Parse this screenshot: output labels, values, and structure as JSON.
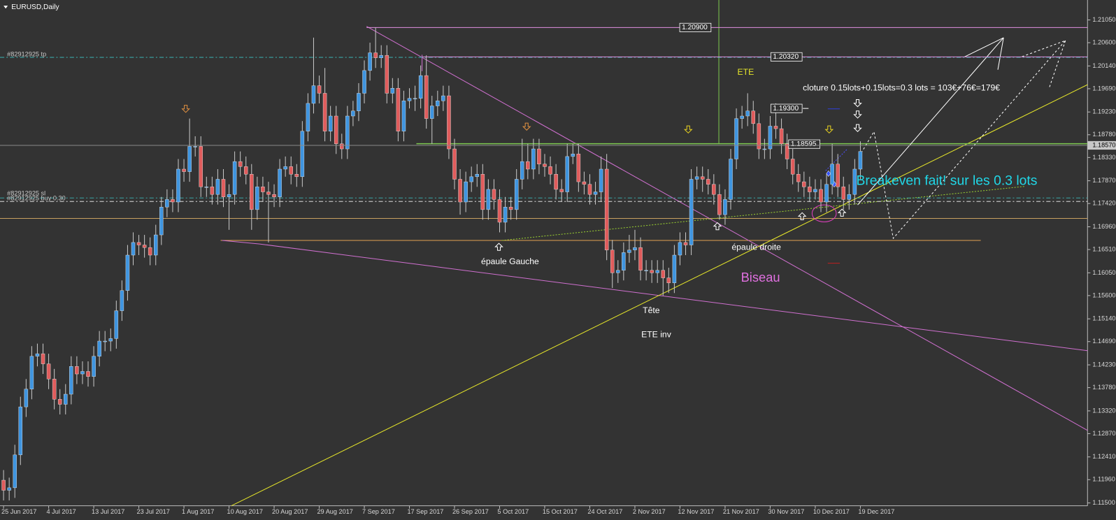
{
  "window_title": "EURUSD,Daily",
  "chart_data": {
    "type": "candlestick",
    "categories": [
      "25 Jun 2017",
      null,
      null,
      null,
      null,
      null,
      null,
      null,
      "4 Jul 2017",
      null,
      null,
      null,
      null,
      null,
      null,
      null,
      "13 Jul 2017",
      null,
      null,
      null,
      null,
      null,
      null,
      null,
      "23 Jul 2017",
      null,
      null,
      null,
      null,
      null,
      null,
      null,
      "1 Aug 2017",
      null,
      null,
      null,
      null,
      null,
      null,
      null,
      "10 Aug 2017",
      null,
      null,
      null,
      null,
      null,
      null,
      null,
      "20 Aug 2017",
      null,
      null,
      null,
      null,
      null,
      null,
      null,
      "29 Aug 2017",
      null,
      null,
      null,
      null,
      null,
      null,
      null,
      "7 Sep 2017",
      null,
      null,
      null,
      null,
      null,
      null,
      null,
      "17 Sep 2017",
      null,
      null,
      null,
      null,
      null,
      null,
      null,
      "26 Sep 2017",
      null,
      null,
      null,
      null,
      null,
      null,
      null,
      "5 Oct 2017",
      null,
      null,
      null,
      null,
      null,
      null,
      null,
      "15 Oct 2017",
      null,
      null,
      null,
      null,
      null,
      null,
      null,
      "24 Oct 2017",
      null,
      null,
      null,
      null,
      null,
      null,
      null,
      "2 Nov 2017",
      null,
      null,
      null,
      null,
      null,
      null,
      null,
      "12 Nov 2017",
      null,
      null,
      null,
      null,
      null,
      null,
      null,
      "21 Nov 2017",
      null,
      null,
      null,
      null,
      null,
      null,
      null,
      "30 Nov 2017",
      null,
      null,
      null,
      null,
      null,
      null,
      null,
      "10 Dec 2017",
      null,
      null,
      null,
      null,
      null,
      null,
      null,
      "19 Dec 2017"
    ],
    "ohlc": [
      [
        1.1195,
        1.1215,
        1.1155,
        1.1175
      ],
      [
        1.1175,
        1.12,
        1.1155,
        1.118
      ],
      [
        1.118,
        1.1265,
        1.116,
        1.1245
      ],
      [
        1.1245,
        1.136,
        1.1225,
        1.134
      ],
      [
        1.134,
        1.1395,
        1.132,
        1.1375
      ],
      [
        1.1375,
        1.146,
        1.1355,
        1.144
      ],
      [
        1.144,
        1.1465,
        1.142,
        1.1445
      ],
      [
        1.1445,
        1.1465,
        1.1405,
        1.1425
      ],
      [
        1.1425,
        1.1445,
        1.1375,
        1.1395
      ],
      [
        1.1395,
        1.1415,
        1.1335,
        1.1355
      ],
      [
        1.1355,
        1.1375,
        1.1325,
        1.1345
      ],
      [
        1.1345,
        1.1385,
        1.1325,
        1.1365
      ],
      [
        1.1365,
        1.144,
        1.1345,
        1.142
      ],
      [
        1.142,
        1.144,
        1.1385,
        1.1405
      ],
      [
        1.1405,
        1.143,
        1.1385,
        1.141
      ],
      [
        1.141,
        1.143,
        1.138,
        1.14
      ],
      [
        1.14,
        1.146,
        1.138,
        1.144
      ],
      [
        1.144,
        1.149,
        1.142,
        1.147
      ],
      [
        1.147,
        1.149,
        1.145,
        1.147
      ],
      [
        1.147,
        1.1495,
        1.145,
        1.1475
      ],
      [
        1.1475,
        1.155,
        1.1455,
        1.153
      ],
      [
        1.153,
        1.159,
        1.151,
        1.157
      ],
      [
        1.157,
        1.166,
        1.155,
        1.164
      ],
      [
        1.164,
        1.1685,
        1.162,
        1.1665
      ],
      [
        1.1665,
        1.168,
        1.164,
        1.166
      ],
      [
        1.166,
        1.168,
        1.1635,
        1.1655
      ],
      [
        1.1655,
        1.1675,
        1.162,
        1.164
      ],
      [
        1.164,
        1.17,
        1.162,
        1.168
      ],
      [
        1.168,
        1.1755,
        1.166,
        1.1735
      ],
      [
        1.1735,
        1.177,
        1.1715,
        1.175
      ],
      [
        1.175,
        1.177,
        1.1725,
        1.1745
      ],
      [
        1.1745,
        1.183,
        1.1725,
        1.181
      ],
      [
        1.181,
        1.183,
        1.1785,
        1.1805
      ],
      [
        1.1805,
        1.191,
        1.1785,
        1.1855
      ],
      [
        1.1855,
        1.1875,
        1.1835,
        1.1855
      ],
      [
        1.1855,
        1.1875,
        1.1755,
        1.1775
      ],
      [
        1.1775,
        1.1795,
        1.1755,
        1.1775
      ],
      [
        1.1775,
        1.1795,
        1.174,
        1.176
      ],
      [
        1.176,
        1.181,
        1.174,
        1.179
      ],
      [
        1.179,
        1.181,
        1.1735,
        1.1755
      ],
      [
        1.1755,
        1.178,
        1.169,
        1.176
      ],
      [
        1.176,
        1.1845,
        1.174,
        1.1825
      ],
      [
        1.1825,
        1.1845,
        1.1795,
        1.1815
      ],
      [
        1.1815,
        1.1835,
        1.178,
        1.18
      ],
      [
        1.18,
        1.182,
        1.169,
        1.173
      ],
      [
        1.173,
        1.1795,
        1.171,
        1.1775
      ],
      [
        1.1775,
        1.1795,
        1.1745,
        1.1765
      ],
      [
        1.1765,
        1.1785,
        1.1665,
        1.176
      ],
      [
        1.176,
        1.178,
        1.1735,
        1.1755
      ],
      [
        1.1755,
        1.183,
        1.1735,
        1.181
      ],
      [
        1.181,
        1.1835,
        1.1795,
        1.1815
      ],
      [
        1.1815,
        1.1835,
        1.178,
        1.18
      ],
      [
        1.18,
        1.182,
        1.1775,
        1.1795
      ],
      [
        1.1795,
        1.1905,
        1.1775,
        1.1885
      ],
      [
        1.1885,
        1.196,
        1.1865,
        1.194
      ],
      [
        1.194,
        1.207,
        1.192,
        1.1975
      ],
      [
        1.1975,
        1.1995,
        1.194,
        1.196
      ],
      [
        1.196,
        1.201,
        1.1865,
        1.1885
      ],
      [
        1.1885,
        1.1935,
        1.1865,
        1.1915
      ],
      [
        1.1915,
        1.1935,
        1.184,
        1.186
      ],
      [
        1.186,
        1.188,
        1.183,
        1.185
      ],
      [
        1.185,
        1.1935,
        1.183,
        1.1915
      ],
      [
        1.1915,
        1.1945,
        1.1895,
        1.1925
      ],
      [
        1.1925,
        1.198,
        1.1905,
        1.196
      ],
      [
        1.196,
        1.2025,
        1.194,
        1.2005
      ],
      [
        1.2005,
        1.206,
        1.1985,
        1.204
      ],
      [
        1.204,
        1.209,
        1.201,
        1.203
      ],
      [
        1.203,
        1.2055,
        1.201,
        1.2035
      ],
      [
        1.2035,
        1.2055,
        1.194,
        1.196
      ],
      [
        1.196,
        1.199,
        1.194,
        1.197
      ],
      [
        1.197,
        1.199,
        1.1865,
        1.1885
      ],
      [
        1.1885,
        1.1965,
        1.1865,
        1.1945
      ],
      [
        1.1945,
        1.197,
        1.193,
        1.195
      ],
      [
        1.195,
        1.1975,
        1.1925,
        1.195
      ],
      [
        1.195,
        1.2015,
        1.193,
        1.1995
      ],
      [
        1.1995,
        1.2035,
        1.189,
        1.191
      ],
      [
        1.191,
        1.1955,
        1.186,
        1.1935
      ],
      [
        1.1935,
        1.1965,
        1.1915,
        1.1945
      ],
      [
        1.1945,
        1.1975,
        1.1925,
        1.1955
      ],
      [
        1.1955,
        1.1975,
        1.183,
        1.185
      ],
      [
        1.185,
        1.187,
        1.177,
        1.179
      ],
      [
        1.179,
        1.181,
        1.172,
        1.1745
      ],
      [
        1.1745,
        1.1805,
        1.1725,
        1.1785
      ],
      [
        1.1785,
        1.1815,
        1.1765,
        1.1795
      ],
      [
        1.1795,
        1.182,
        1.1775,
        1.18
      ],
      [
        1.18,
        1.182,
        1.171,
        1.173
      ],
      [
        1.173,
        1.179,
        1.171,
        1.177
      ],
      [
        1.177,
        1.179,
        1.173,
        1.175
      ],
      [
        1.175,
        1.177,
        1.1685,
        1.1705
      ],
      [
        1.1705,
        1.1755,
        1.1685,
        1.1735
      ],
      [
        1.1735,
        1.1755,
        1.171,
        1.173
      ],
      [
        1.173,
        1.181,
        1.171,
        1.179
      ],
      [
        1.179,
        1.187,
        1.177,
        1.1825
      ],
      [
        1.1825,
        1.186,
        1.179,
        1.181
      ],
      [
        1.181,
        1.187,
        1.179,
        1.185
      ],
      [
        1.185,
        1.187,
        1.18,
        1.182
      ],
      [
        1.182,
        1.184,
        1.1795,
        1.1815
      ],
      [
        1.1815,
        1.1835,
        1.178,
        1.18
      ],
      [
        1.18,
        1.182,
        1.175,
        1.177
      ],
      [
        1.177,
        1.179,
        1.1745,
        1.1765
      ],
      [
        1.1765,
        1.186,
        1.1745,
        1.1835
      ],
      [
        1.1835,
        1.186,
        1.182,
        1.184
      ],
      [
        1.184,
        1.186,
        1.1765,
        1.1785
      ],
      [
        1.1785,
        1.1805,
        1.176,
        1.178
      ],
      [
        1.178,
        1.18,
        1.174,
        1.176
      ],
      [
        1.176,
        1.1785,
        1.174,
        1.1765
      ],
      [
        1.1765,
        1.1835,
        1.1745,
        1.181
      ],
      [
        1.181,
        1.184,
        1.163,
        1.165
      ],
      [
        1.165,
        1.167,
        1.1575,
        1.1605
      ],
      [
        1.1605,
        1.163,
        1.1585,
        1.161
      ],
      [
        1.161,
        1.1665,
        1.159,
        1.1645
      ],
      [
        1.1645,
        1.168,
        1.1625,
        1.165
      ],
      [
        1.165,
        1.169,
        1.163,
        1.1655
      ],
      [
        1.1655,
        1.1675,
        1.159,
        1.161
      ],
      [
        1.161,
        1.163,
        1.159,
        1.161
      ],
      [
        1.161,
        1.163,
        1.1585,
        1.1605
      ],
      [
        1.1605,
        1.163,
        1.1585,
        1.161
      ],
      [
        1.161,
        1.163,
        1.156,
        1.1595
      ],
      [
        1.1595,
        1.1615,
        1.1565,
        1.1585
      ],
      [
        1.1585,
        1.166,
        1.1565,
        1.164
      ],
      [
        1.164,
        1.1685,
        1.162,
        1.1665
      ],
      [
        1.1665,
        1.1685,
        1.164,
        1.166
      ],
      [
        1.166,
        1.181,
        1.164,
        1.179
      ],
      [
        1.179,
        1.1815,
        1.177,
        1.1795
      ],
      [
        1.1795,
        1.1815,
        1.1765,
        1.179
      ],
      [
        1.179,
        1.181,
        1.176,
        1.178
      ],
      [
        1.178,
        1.18,
        1.174,
        1.176
      ],
      [
        1.176,
        1.178,
        1.171,
        1.172
      ],
      [
        1.172,
        1.177,
        1.17,
        1.175
      ],
      [
        1.175,
        1.185,
        1.173,
        1.183
      ],
      [
        1.183,
        1.193,
        1.181,
        1.191
      ],
      [
        1.191,
        1.1935,
        1.189,
        1.1915
      ],
      [
        1.1915,
        1.196,
        1.1895,
        1.1925
      ],
      [
        1.1925,
        1.1945,
        1.188,
        1.19
      ],
      [
        1.19,
        1.192,
        1.183,
        1.185
      ],
      [
        1.185,
        1.187,
        1.183,
        1.185
      ],
      [
        1.185,
        1.1915,
        1.183,
        1.1895
      ],
      [
        1.1895,
        1.194,
        1.187,
        1.189
      ],
      [
        1.189,
        1.191,
        1.184,
        1.186
      ],
      [
        1.186,
        1.188,
        1.181,
        1.183
      ],
      [
        1.183,
        1.185,
        1.178,
        1.18
      ],
      [
        1.18,
        1.182,
        1.1765,
        1.1785
      ],
      [
        1.1785,
        1.1805,
        1.1755,
        1.1775
      ],
      [
        1.1775,
        1.1795,
        1.1745,
        1.1765
      ],
      [
        1.1765,
        1.179,
        1.175,
        1.177
      ],
      [
        1.177,
        1.179,
        1.1725,
        1.1745
      ],
      [
        1.1745,
        1.18,
        1.1725,
        1.178
      ],
      [
        1.178,
        1.186,
        1.176,
        1.182
      ],
      [
        1.182,
        1.184,
        1.1755,
        1.1775
      ],
      [
        1.1775,
        1.1795,
        1.173,
        1.175
      ],
      [
        1.175,
        1.178,
        1.173,
        1.176
      ],
      [
        1.176,
        1.183,
        1.174,
        1.181
      ],
      [
        1.181,
        1.1865,
        1.179,
        1.1845
      ]
    ],
    "up_color": "#3f95e0",
    "down_color": "#e05c5c",
    "wick_color": "#c8c8c8",
    "ylim": [
      1.11444,
      1.21444
    ],
    "yticks": [
      {
        "value": 1.2105,
        "label": "1.21050"
      },
      {
        "value": 1.206,
        "label": "1.20600"
      },
      {
        "value": 1.2014,
        "label": "1.20140"
      },
      {
        "value": 1.1969,
        "label": "1.19690"
      },
      {
        "value": 1.1923,
        "label": "1.19230"
      },
      {
        "value": 1.1878,
        "label": "1.18780"
      },
      {
        "value": 1.1833,
        "label": "1.18330"
      },
      {
        "value": 1.1787,
        "label": "1.17870"
      },
      {
        "value": 1.1742,
        "label": "1.17420"
      },
      {
        "value": 1.1696,
        "label": "1.16960"
      },
      {
        "value": 1.1651,
        "label": "1.16510"
      },
      {
        "value": 1.1605,
        "label": "1.16050"
      },
      {
        "value": 1.156,
        "label": "1.15600"
      },
      {
        "value": 1.1514,
        "label": "1.15140"
      },
      {
        "value": 1.1469,
        "label": "1.14690"
      },
      {
        "value": 1.1423,
        "label": "1.14230"
      },
      {
        "value": 1.1378,
        "label": "1.13780"
      },
      {
        "value": 1.1332,
        "label": "1.13320"
      },
      {
        "value": 1.1287,
        "label": "1.12870"
      },
      {
        "value": 1.1241,
        "label": "1.12410"
      },
      {
        "value": 1.1196,
        "label": "1.11960"
      },
      {
        "value": 1.115,
        "label": "1.11500"
      }
    ],
    "last_price": {
      "value": 1.1857,
      "label": "1.18570"
    },
    "price_levels": [
      {
        "value": 1.209,
        "label": "1.20900"
      },
      {
        "value": 1.2032,
        "label": "1.20320"
      },
      {
        "value": 1.193,
        "label": "1.19300"
      },
      {
        "value": 1.18595,
        "label": "1.18595"
      }
    ],
    "orders": [
      {
        "name": "#82912925 tp",
        "value": 1.2031
      },
      {
        "name": "#82912925 sl",
        "value": 1.1753
      },
      {
        "name": "#82912925 buy 0.30",
        "value": 1.1746
      }
    ],
    "annotations": [
      "ETE",
      "cloture 0.15lots+0.15lots=0.3 lots = 103€+76€=179€",
      "Breakeven fait! sur les 0.3 lots",
      "épaule Gauche",
      "épaule droite",
      "Tête",
      "ETE inv",
      "Biseau"
    ]
  }
}
